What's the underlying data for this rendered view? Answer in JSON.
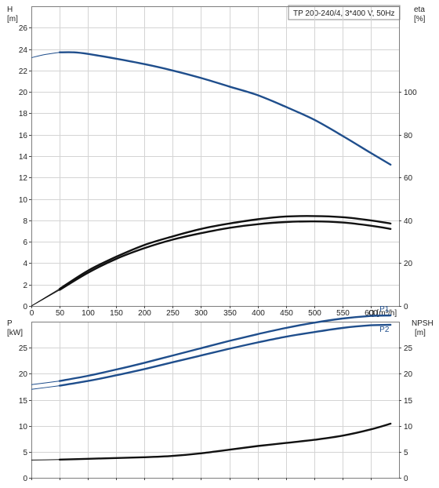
{
  "chart_data": [
    {
      "type": "line",
      "title": "TP 200-240/4, 3*400 V, 50Hz",
      "xlabel": "Q [m³/h]",
      "ylabel_left": "H\n[m]",
      "ylabel_right": "eta\n[%]",
      "xlim": [
        0,
        650
      ],
      "ylim_left": [
        0,
        28
      ],
      "ylim_right": [
        0,
        140
      ],
      "x_ticks": [
        0,
        50,
        100,
        150,
        200,
        250,
        300,
        350,
        400,
        450,
        500,
        550,
        600
      ],
      "y_ticks_left": [
        0,
        2,
        4,
        6,
        8,
        10,
        12,
        14,
        16,
        18,
        20,
        22,
        24,
        26
      ],
      "y_ticks_right": [
        0,
        20,
        40,
        60,
        80,
        100
      ],
      "grid": true,
      "series": [
        {
          "name": "",
          "axis": "left",
          "color": "#1f4e8c",
          "x": [
            0,
            25,
            50,
            75,
            100,
            150,
            200,
            250,
            300,
            350,
            400,
            450,
            500,
            550,
            600,
            635
          ],
          "y": [
            23.2,
            23.5,
            23.7,
            23.7,
            23.55,
            23.1,
            22.6,
            22.0,
            21.3,
            20.5,
            19.7,
            18.6,
            17.4,
            15.9,
            14.3,
            13.2
          ]
        },
        {
          "name": "",
          "axis": "right",
          "color": "#111111",
          "x": [
            0,
            50,
            100,
            150,
            200,
            250,
            300,
            350,
            400,
            450,
            500,
            550,
            600,
            635
          ],
          "y": [
            0,
            8,
            16.5,
            23,
            28.5,
            32.5,
            36,
            38.5,
            40.5,
            41.8,
            42,
            41.5,
            40,
            38.5
          ]
        },
        {
          "name": "",
          "axis": "right",
          "color": "#111111",
          "x": [
            0,
            50,
            100,
            150,
            200,
            250,
            300,
            350,
            400,
            450,
            500,
            550,
            600,
            635
          ],
          "y": [
            0,
            7.5,
            15.5,
            22,
            27,
            31,
            34,
            36.5,
            38.2,
            39.2,
            39.5,
            39,
            37.5,
            36
          ]
        }
      ]
    },
    {
      "type": "line",
      "ylabel_left": "P\n[kW]",
      "ylabel_right": "NPSH\n[m]",
      "xlim": [
        0,
        650
      ],
      "ylim_left": [
        0,
        30
      ],
      "ylim_right": [
        0,
        30
      ],
      "y_ticks_left": [
        0,
        5,
        10,
        15,
        20,
        25
      ],
      "y_ticks_right": [
        0,
        5,
        10,
        15,
        20,
        25
      ],
      "grid": true,
      "series": [
        {
          "name": "P1",
          "axis": "left",
          "color": "#1f4e8c",
          "x": [
            0,
            50,
            100,
            150,
            200,
            250,
            300,
            350,
            400,
            450,
            500,
            550,
            600,
            635
          ],
          "y": [
            17.9,
            18.6,
            19.6,
            20.8,
            22.1,
            23.5,
            24.9,
            26.3,
            27.6,
            28.8,
            29.8,
            30.6,
            31.1,
            31.2
          ]
        },
        {
          "name": "P2",
          "axis": "left",
          "color": "#1f4e8c",
          "x": [
            0,
            50,
            100,
            150,
            200,
            250,
            300,
            350,
            400,
            450,
            500,
            550,
            600,
            635
          ],
          "y": [
            17.0,
            17.7,
            18.6,
            19.7,
            20.9,
            22.2,
            23.5,
            24.8,
            26.0,
            27.1,
            28.0,
            28.8,
            29.3,
            29.4
          ]
        },
        {
          "name": "",
          "axis": "right",
          "color": "#111111",
          "x": [
            0,
            50,
            100,
            150,
            200,
            250,
            300,
            350,
            400,
            450,
            500,
            550,
            600,
            635
          ],
          "y": [
            3.4,
            3.5,
            3.65,
            3.8,
            3.95,
            4.2,
            4.7,
            5.4,
            6.1,
            6.7,
            7.3,
            8.1,
            9.3,
            10.4
          ]
        }
      ]
    }
  ]
}
